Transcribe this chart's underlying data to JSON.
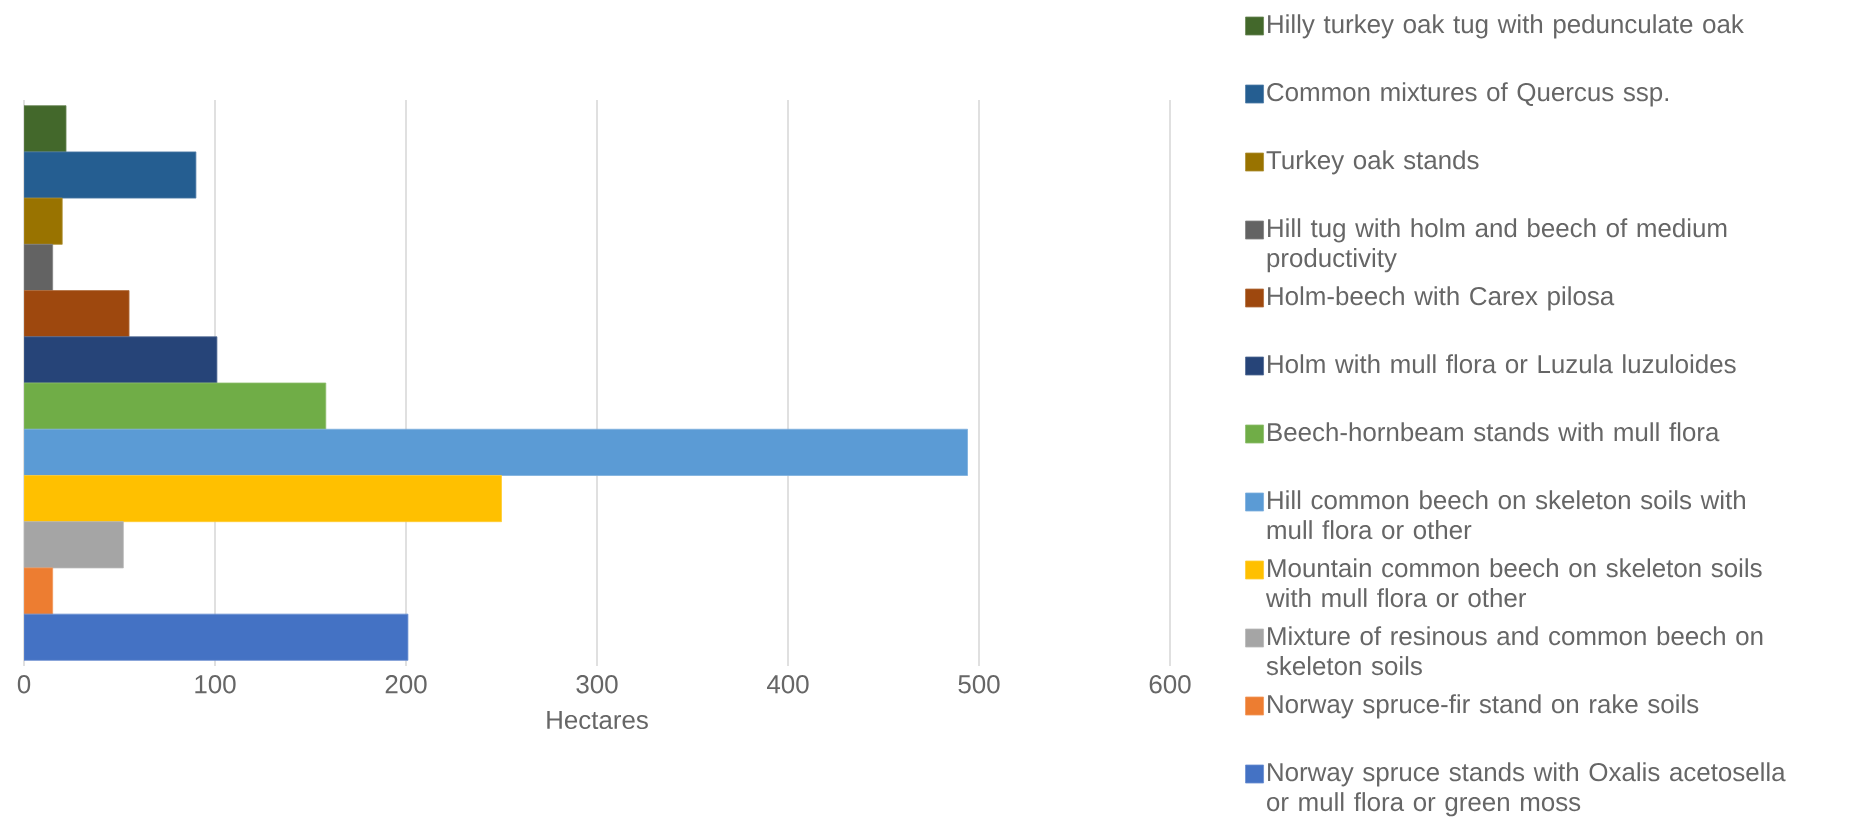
{
  "chart_data": {
    "type": "bar",
    "orientation": "horizontal",
    "xlabel": "Hectares",
    "categories": [
      null
    ],
    "xlim": [
      0,
      600
    ],
    "xticks": [
      0,
      100,
      200,
      300,
      400,
      500,
      600
    ],
    "grid": "x",
    "legend": "right",
    "series": [
      {
        "name": "Hilly turkey oak tug with pedunculate oak",
        "color": "#43682b",
        "values": [
          22
        ]
      },
      {
        "name": "Common mixtures of Quercus ssp.",
        "color": "#255e91",
        "values": [
          90
        ]
      },
      {
        "name": "Turkey oak stands",
        "color": "#997300",
        "values": [
          20
        ]
      },
      {
        "name": "Hill tug with holm and beech of medium productivity",
        "color": "#636363",
        "values": [
          15
        ]
      },
      {
        "name": "Holm-beech with Carex pilosa",
        "color": "#9e480e",
        "values": [
          55
        ]
      },
      {
        "name": "Holm with mull flora or Luzula luzuloides",
        "color": "#264478",
        "values": [
          101
        ]
      },
      {
        "name": "Beech-hornbeam stands with mull flora",
        "color": "#70ad47",
        "values": [
          158
        ]
      },
      {
        "name": "Hill common beech on skeleton soils with mull flora or other",
        "color": "#5b9bd5",
        "values": [
          494
        ]
      },
      {
        "name": "Mountain common beech on skeleton soils with mull flora or other",
        "color": "#ffc000",
        "values": [
          250
        ]
      },
      {
        "name": "Mixture of resinous and common beech on skeleton soils",
        "color": "#a5a5a5",
        "values": [
          52
        ]
      },
      {
        "name": "Norway spruce-fir stand on rake soils",
        "color": "#ed7d31",
        "values": [
          15
        ]
      },
      {
        "name": "Norway spruce stands with Oxalis acetosella or mull flora or green moss",
        "color": "#4472c4",
        "values": [
          201
        ]
      }
    ]
  }
}
